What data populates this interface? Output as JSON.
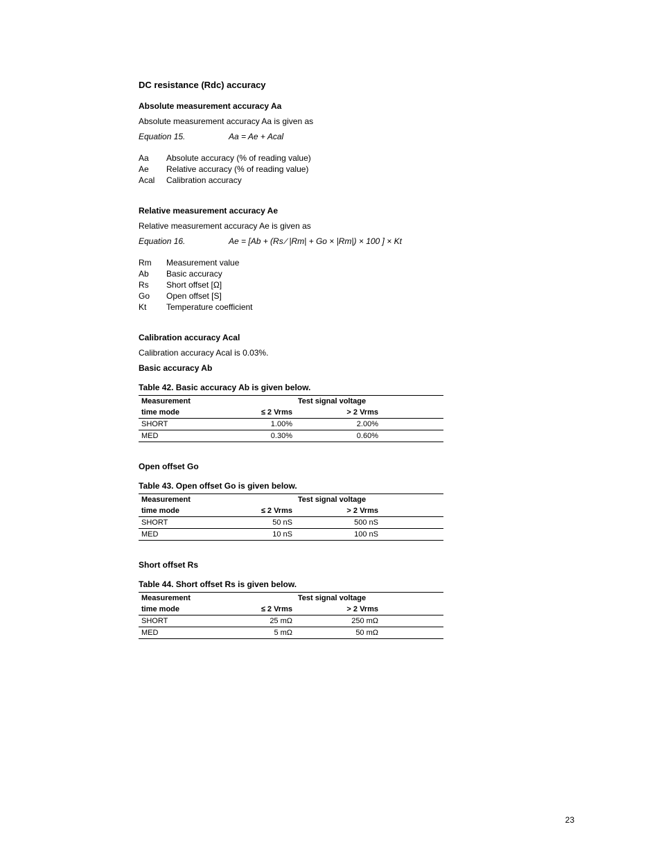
{
  "section1": {
    "title": "DC resistance (Rdc) accuracy",
    "sub1": {
      "title": "Absolute measurement accuracy Aa",
      "intro": "Absolute measurement accuracy Aa is given as",
      "eq_label": "Equation 15.",
      "eq_formula": "Aa = Ae + Acal",
      "defs": [
        {
          "term": "Aa",
          "desc": "Absolute accuracy (% of reading value)"
        },
        {
          "term": "Ae",
          "desc": "Relative accuracy (% of reading value)"
        },
        {
          "term": "Acal",
          "desc": "Calibration accuracy"
        }
      ]
    },
    "sub2": {
      "title": "Relative measurement accuracy Ae",
      "intro": "Relative measurement accuracy Ae is given as",
      "eq_label": "Equation 16.",
      "eq_formula": "Ae = [Ab + (Rs ∕ |Rm| + Go × |Rm|) × 100 ] × Kt",
      "defs": [
        {
          "term": "Rm",
          "desc": "Measurement value"
        },
        {
          "term": "Ab",
          "desc": "Basic accuracy"
        },
        {
          "term": "Rs",
          "desc": "Short offset [Ω]"
        },
        {
          "term": "Go",
          "desc": "Open offset [S]"
        },
        {
          "term": "Kt",
          "desc": "Temperature coefficient"
        }
      ]
    },
    "sub3": {
      "title": "Calibration accuracy Acal",
      "body": "Calibration accuracy Acal is 0.03%."
    },
    "table_headers": {
      "col1_line1": "Measurement",
      "col1_line2": "time mode",
      "span_hdr": "Test signal voltage",
      "col2": "≤ 2 Vrms",
      "col3": "> 2 Vrms"
    },
    "tableAb": {
      "section_title": "Basic accuracy Ab",
      "title": "Table 42. Basic accuracy Ab is given below.",
      "rows": [
        {
          "mode": "SHORT",
          "v1": "1.00%",
          "v2": "2.00%"
        },
        {
          "mode": "MED",
          "v1": "0.30%",
          "v2": "0.60%"
        }
      ]
    },
    "tableGo": {
      "section_title": "Open offset Go",
      "title": "Table 43. Open offset Go is given below.",
      "rows": [
        {
          "mode": "SHORT",
          "v1": "50 nS",
          "v2": "500 nS"
        },
        {
          "mode": "MED",
          "v1": "10 nS",
          "v2": "100 nS"
        }
      ]
    },
    "tableRs": {
      "section_title": "Short offset Rs",
      "title": "Table 44. Short offset Rs is given below.",
      "rows": [
        {
          "mode": "SHORT",
          "v1": "25 mΩ",
          "v2": "250 mΩ"
        },
        {
          "mode": "MED",
          "v1": "5 mΩ",
          "v2": "50 mΩ"
        }
      ]
    }
  },
  "page_number": "23"
}
